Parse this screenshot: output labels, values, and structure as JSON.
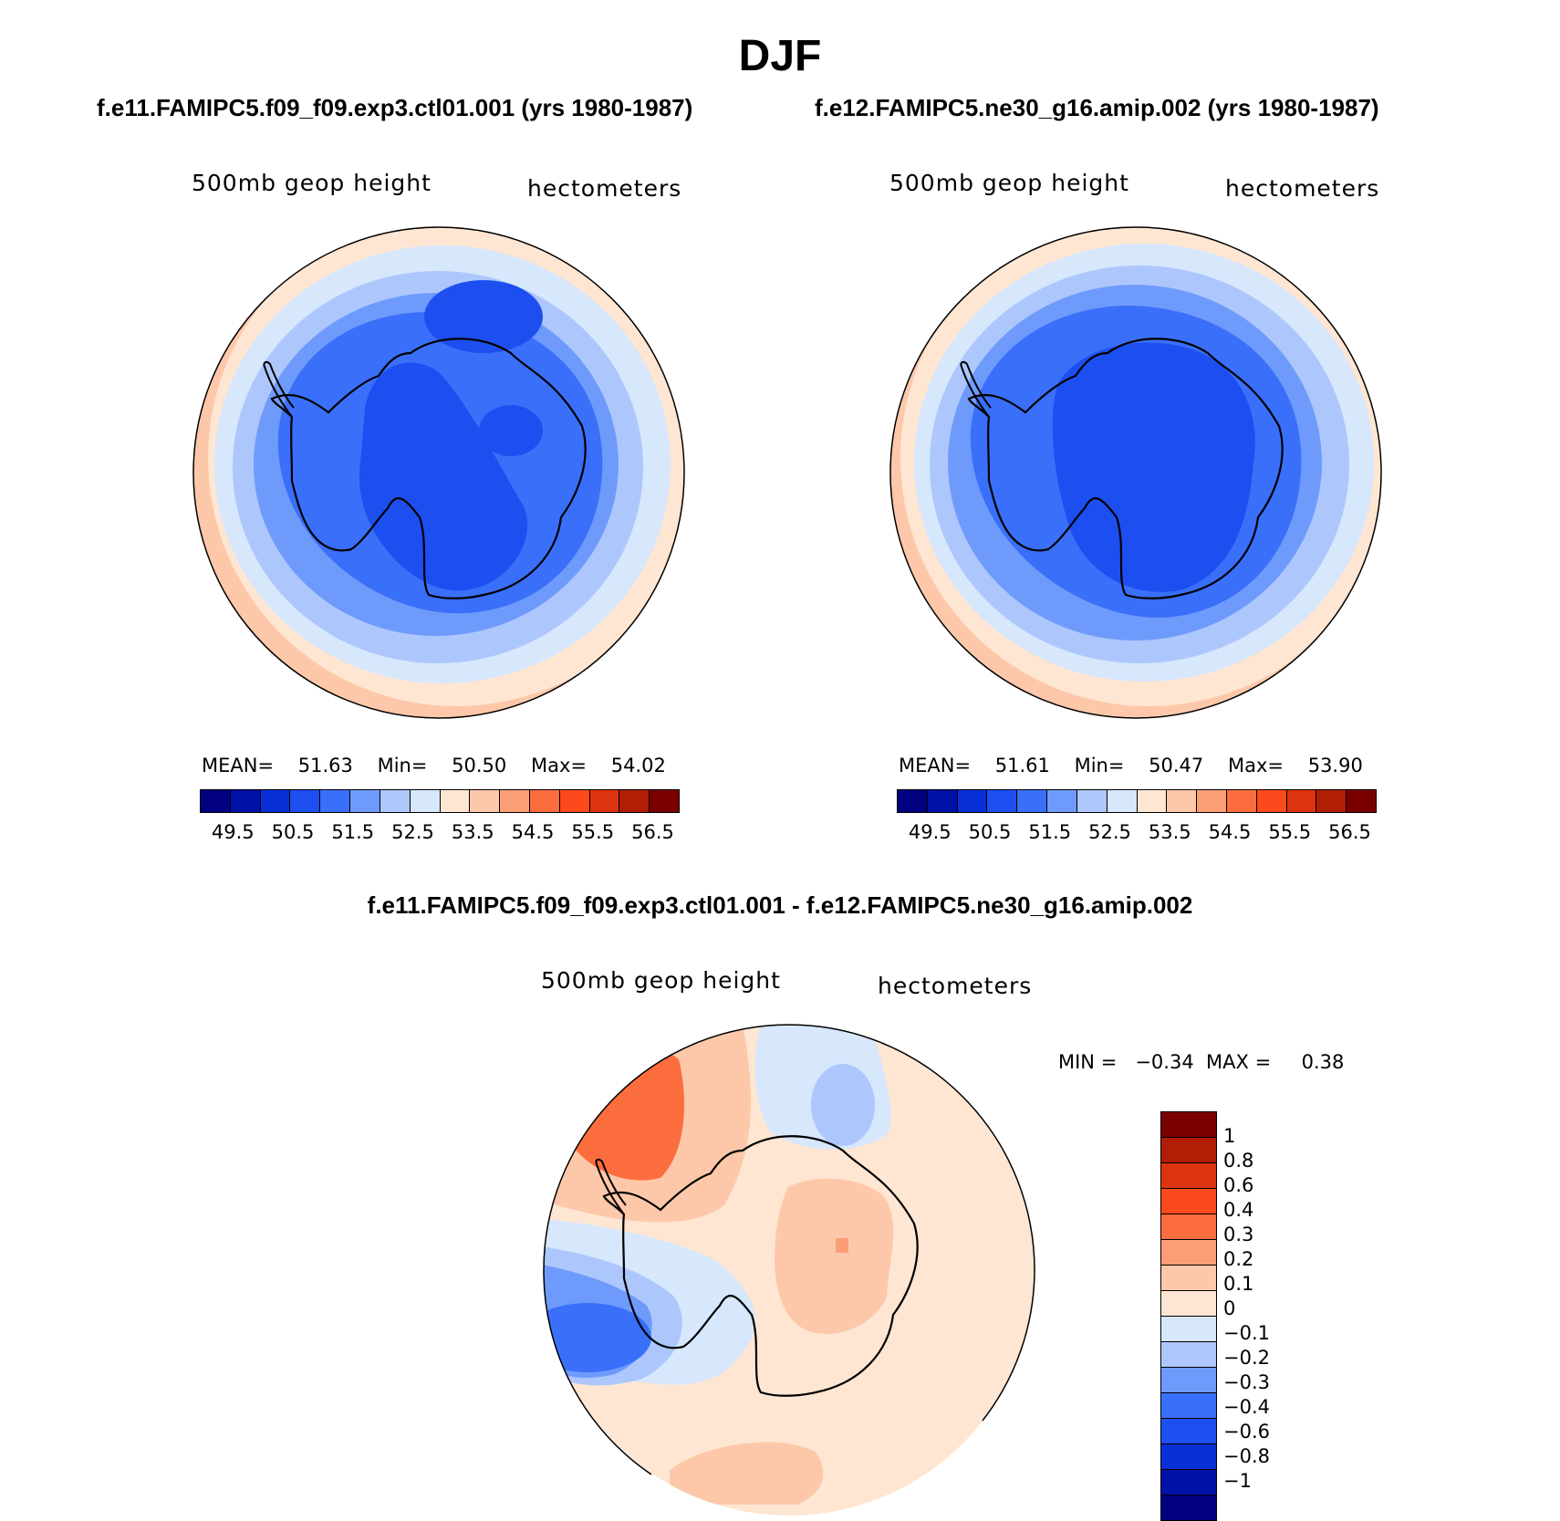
{
  "title": "DJF",
  "colors": {
    "sequential": [
      "#000080",
      "#0011a8",
      "#0a2fd6",
      "#1d4ff0",
      "#3a6ffa",
      "#6e9bfb",
      "#adc7fd",
      "#d7e7fc",
      "#ffe6d2",
      "#fdc8aa",
      "#fb9e76",
      "#fc6d3d",
      "#fc4a1c",
      "#dd3410",
      "#b21d05",
      "#7a0000"
    ],
    "difference": [
      "#7a0000",
      "#b21d05",
      "#dd3410",
      "#fc4a1c",
      "#fc6d3d",
      "#fb9e76",
      "#fdc8aa",
      "#ffe6d2",
      "#d7e7fc",
      "#adc7fd",
      "#6e9bfb",
      "#3a6ffa",
      "#1d4ff0",
      "#0a2fd6",
      "#0011a8",
      "#000080"
    ]
  },
  "panels": [
    {
      "case": "f.e11.FAMIPC5.f09_f09.exp3.ctl01.001 (yrs 1980-1987)",
      "variable": "500mb geop height",
      "units": "hectometers",
      "mean_label": "MEAN=",
      "mean": "51.63",
      "min_label": "Min=",
      "min": "50.50",
      "max_label": "Max=",
      "max": "54.02"
    },
    {
      "case": "f.e12.FAMIPC5.ne30_g16.amip.002 (yrs 1980-1987)",
      "variable": "500mb geop height",
      "units": "hectometers",
      "mean_label": "MEAN=",
      "mean": "51.61",
      "min_label": "Min=",
      "min": "50.47",
      "max_label": "Max=",
      "max": "53.90"
    }
  ],
  "colorbar_ticks": [
    "49.5",
    "50.5",
    "51.5",
    "52.5",
    "53.5",
    "54.5",
    "55.5",
    "56.5"
  ],
  "difference": {
    "title": "f.e11.FAMIPC5.f09_f09.exp3.ctl01.001 - f.e12.FAMIPC5.ne30_g16.amip.002",
    "variable": "500mb geop height",
    "units": "hectometers",
    "min_label": "MIN =",
    "min": "−0.34",
    "max_label": "MAX =",
    "max": "0.38",
    "ticks": [
      "1",
      "0.8",
      "0.6",
      "0.4",
      "0.3",
      "0.2",
      "0.1",
      "0",
      "−0.1",
      "−0.2",
      "−0.3",
      "−0.4",
      "−0.6",
      "−0.8",
      "−1"
    ]
  }
}
